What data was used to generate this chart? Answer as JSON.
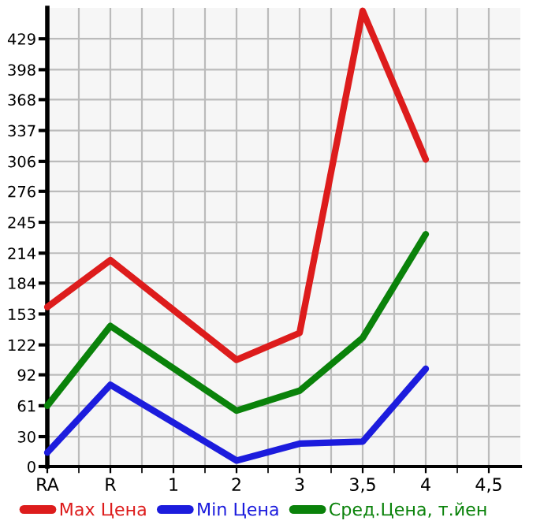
{
  "chart_data": {
    "type": "line",
    "categories": [
      "RA",
      "R",
      "1",
      "2",
      "3",
      "3,5",
      "4",
      "4,5"
    ],
    "series": [
      {
        "name": "Max Цена",
        "color": "#dd1c1c",
        "values": [
          160,
          207,
          null,
          107,
          134,
          457,
          308,
          null
        ]
      },
      {
        "name": "Min Цена",
        "color": "#1c1cdd",
        "values": [
          14,
          82,
          null,
          6,
          23,
          25,
          98,
          null
        ]
      },
      {
        "name": "Сред.Цена, т.йен",
        "color": "#0a820a",
        "values": [
          61,
          141,
          null,
          56,
          76,
          129,
          233,
          null
        ]
      }
    ],
    "ylim": [
      0,
      460
    ],
    "yticks": [
      0,
      30,
      61,
      92,
      122,
      153,
      184,
      214,
      245,
      276,
      306,
      337,
      368,
      398,
      429
    ],
    "grid": true,
    "legend": "bottom",
    "marker": "none",
    "line_style": "solid"
  }
}
